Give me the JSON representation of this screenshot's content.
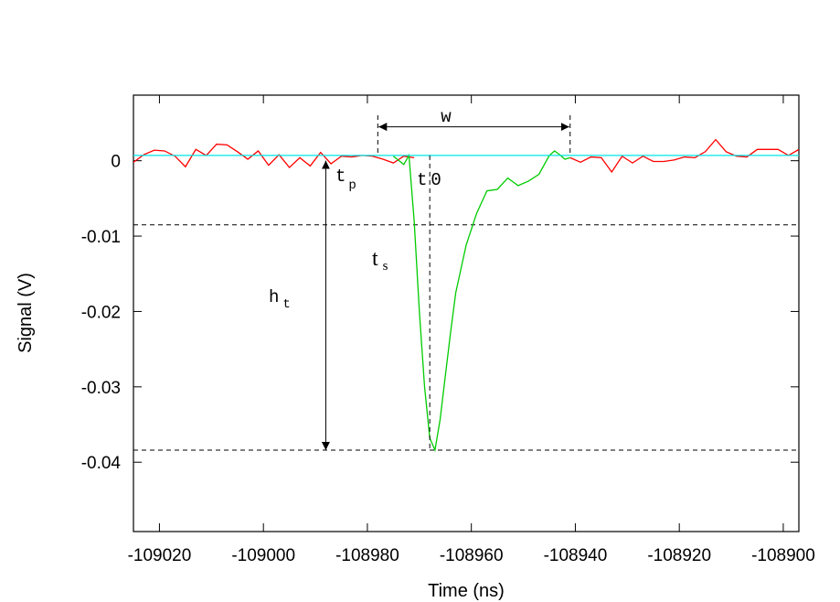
{
  "chart_data": {
    "type": "line",
    "title": "",
    "xlabel": "Time (ns)",
    "ylabel": "Signal (V)",
    "xlim": [
      -109025,
      -108897
    ],
    "ylim": [
      -0.0492,
      0.0087
    ],
    "x_ticks": [
      -109020,
      -109000,
      -108980,
      -108960,
      -108940,
      -108920,
      -108900
    ],
    "x_tick_labels": [
      "-109020",
      "-109000",
      "-108980",
      "-108960",
      "-108940",
      "-108920",
      "-108900"
    ],
    "y_ticks": [
      0,
      -0.01,
      -0.02,
      -0.03,
      -0.04
    ],
    "y_tick_labels": [
      "0",
      "-0.01",
      "-0.02",
      "-0.03",
      "-0.04"
    ],
    "grid": false,
    "series": [
      {
        "role": "baseline-noise",
        "color": "#ff0000",
        "x": [
          -109025,
          -109023,
          -109021,
          -109019,
          -109017,
          -109015,
          -109013,
          -109011,
          -109009,
          -109007,
          -109005,
          -109003,
          -109001,
          -108999,
          -108997,
          -108995,
          -108993,
          -108991,
          -108989,
          -108987,
          -108985,
          -108983,
          -108981,
          -108979,
          -108977,
          -108975,
          -108973,
          -108971
        ],
        "y": [
          -0.0002,
          0.0008,
          0.0014,
          0.0013,
          0.0006,
          -0.0008,
          0.0015,
          0.0007,
          0.0022,
          0.0021,
          0.0012,
          0.0002,
          0.0013,
          -0.0006,
          0.0008,
          -0.0009,
          0.0004,
          -0.0007,
          0.0011,
          -0.0004,
          0.0006,
          0.0005,
          0.0007,
          0.0006,
          0.0002,
          -0.0003,
          0.0006,
          0.0004
        ]
      },
      {
        "role": "pulse",
        "color": "#00cc00",
        "x": [
          -108975,
          -108973,
          -108972,
          -108971,
          -108970,
          -108969,
          -108968,
          -108967,
          -108966,
          -108965,
          -108964,
          -108963,
          -108961,
          -108959,
          -108957,
          -108956,
          -108955,
          -108953,
          -108951,
          -108949,
          -108947,
          -108945,
          -108944,
          -108943,
          -108942,
          -108941
        ],
        "y": [
          0.0006,
          -0.0005,
          0.0007,
          -0.008,
          -0.02,
          -0.03,
          -0.0368,
          -0.0384,
          -0.0343,
          -0.0285,
          -0.0228,
          -0.0175,
          -0.0112,
          -0.007,
          -0.004,
          -0.0039,
          -0.0038,
          -0.0023,
          -0.0033,
          -0.0027,
          -0.0018,
          0.0007,
          0.0013,
          0.0008,
          0.0002,
          0.0004
        ]
      },
      {
        "role": "baseline-noise",
        "color": "#ff0000",
        "x": [
          -108941,
          -108939,
          -108937,
          -108935,
          -108933,
          -108931,
          -108929,
          -108927,
          -108925,
          -108923,
          -108921,
          -108919,
          -108917,
          -108915,
          -108913,
          -108911,
          -108909,
          -108907,
          -108905,
          -108903,
          -108901,
          -108899,
          -108897
        ],
        "y": [
          0.0004,
          -0.0002,
          0.0005,
          0.0004,
          -0.0015,
          0.0006,
          -0.0003,
          0.0006,
          -0.0001,
          -0.0001,
          0.0001,
          0.0005,
          0.0004,
          0.0012,
          0.0028,
          0.0012,
          0.0006,
          0.0005,
          0.0015,
          0.0015,
          0.0015,
          0.0007,
          0.0015
        ]
      },
      {
        "role": "baseline-level",
        "color": "#00e5e5",
        "x": [
          -109025,
          -108897
        ],
        "y": [
          0.0007,
          0.0007
        ]
      }
    ],
    "threshold_lines": [
      -0.0085,
      -0.0384
    ],
    "markers": {
      "t_p": -108978,
      "t_0": -108968,
      "w": [
        -108978,
        -108941
      ],
      "h_t_x": -108988,
      "h_t": [
        0.0,
        -0.0384
      ]
    },
    "annotations": {
      "w": "w",
      "t_p": "t",
      "t_p_sub": "p",
      "t_0": "t",
      "t_0_sub": "0",
      "t_s": "t",
      "t_s_sub": "s",
      "h_t": "h",
      "h_t_sub": "t"
    }
  }
}
